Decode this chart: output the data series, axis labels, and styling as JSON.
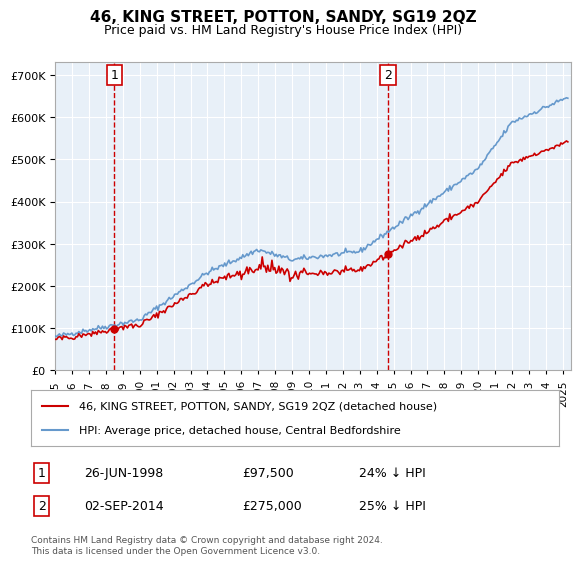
{
  "title": "46, KING STREET, POTTON, SANDY, SG19 2QZ",
  "subtitle": "Price paid vs. HM Land Registry's House Price Index (HPI)",
  "xlabel": "",
  "ylabel": "",
  "ylim": [
    0,
    730000
  ],
  "xlim": [
    1995,
    2025.5
  ],
  "background_color": "#ddeeff",
  "plot_bg": "#e8f0f8",
  "grid_color": "#ffffff",
  "sale1_date": 1998.49,
  "sale1_price": 97500,
  "sale2_date": 2014.67,
  "sale2_price": 275000,
  "legend_label1": "46, KING STREET, POTTON, SANDY, SG19 2QZ (detached house)",
  "legend_label2": "HPI: Average price, detached house, Central Bedfordshire",
  "annotation1": "1",
  "annotation2": "2",
  "ann1_x": 1998.49,
  "ann1_y": 97500,
  "ann2_x": 2014.67,
  "ann2_y": 275000,
  "table_rows": [
    {
      "num": "1",
      "date": "26-JUN-1998",
      "price": "£97,500",
      "hpi": "24% ↓ HPI"
    },
    {
      "num": "2",
      "date": "02-SEP-2014",
      "price": "£275,000",
      "hpi": "25% ↓ HPI"
    }
  ],
  "footnote": "Contains HM Land Registry data © Crown copyright and database right 2024.\nThis data is licensed under the Open Government Licence v3.0.",
  "sale_line_color": "#cc0000",
  "hpi_line_color": "#6699cc",
  "sale_dot_color": "#cc0000",
  "vline_color": "#cc0000",
  "tick_years": [
    1995,
    1996,
    1997,
    1998,
    1999,
    2000,
    2001,
    2002,
    2003,
    2004,
    2005,
    2006,
    2007,
    2008,
    2009,
    2010,
    2011,
    2012,
    2013,
    2014,
    2015,
    2016,
    2017,
    2018,
    2019,
    2020,
    2021,
    2022,
    2023,
    2024,
    2025
  ]
}
